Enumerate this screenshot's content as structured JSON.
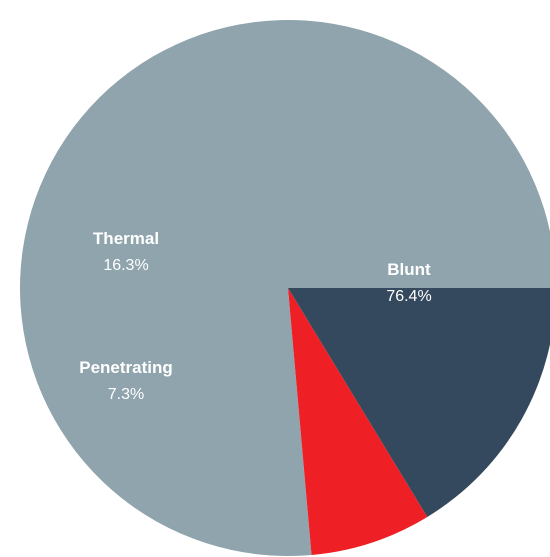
{
  "chart_data": {
    "type": "pie",
    "title": "",
    "start_angle_deg": 0,
    "direction": "counterclockwise",
    "slices": [
      {
        "name": "Blunt",
        "value": 76.4,
        "label": "76.4%",
        "color": "#90A4AE"
      },
      {
        "name": "Penetrating",
        "value": 7.3,
        "label": "7.3%",
        "color": "#EE2026"
      },
      {
        "name": "Thermal",
        "value": 16.3,
        "label": "16.3%",
        "color": "#35495E"
      }
    ]
  }
}
